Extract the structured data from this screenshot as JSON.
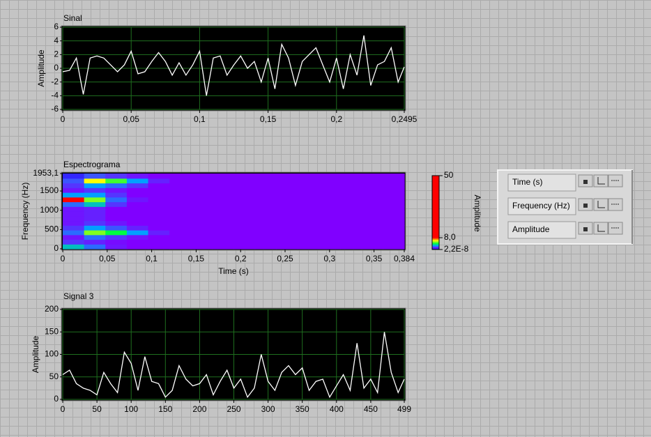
{
  "chart_data": [
    {
      "type": "line",
      "title": "Sinal",
      "y_label": "Amplitude",
      "color": "#ffffff",
      "background": "#000000",
      "grid": true,
      "grid_color": "#1f6f1f",
      "x": [
        0,
        0.005,
        0.01,
        0.015,
        0.02,
        0.025,
        0.03,
        0.035,
        0.04,
        0.045,
        0.05,
        0.055,
        0.06,
        0.065,
        0.07,
        0.075,
        0.08,
        0.085,
        0.09,
        0.095,
        0.1,
        0.105,
        0.11,
        0.115,
        0.12,
        0.125,
        0.13,
        0.135,
        0.14,
        0.145,
        0.15,
        0.155,
        0.16,
        0.165,
        0.17,
        0.175,
        0.18,
        0.185,
        0.19,
        0.195,
        0.2,
        0.205,
        0.21,
        0.215,
        0.22,
        0.225,
        0.23,
        0.235,
        0.24,
        0.245,
        0.2495
      ],
      "values": [
        -0.5,
        -0.3,
        1.5,
        -3.8,
        1.5,
        1.8,
        1.5,
        0.5,
        -0.5,
        0.5,
        2.5,
        -0.8,
        -0.5,
        1,
        2.3,
        1,
        -1,
        0.8,
        -1,
        0.5,
        2.5,
        -4,
        1.5,
        1.8,
        -1,
        0.5,
        1.8,
        0,
        1,
        -2,
        1.5,
        -3,
        3.5,
        1.5,
        -2.5,
        1,
        2,
        3,
        0.5,
        -2,
        1.5,
        -3,
        2,
        -1,
        4.8,
        -2.5,
        0.5,
        1,
        3,
        -2,
        0.2
      ],
      "xlim": [
        0,
        0.2495
      ],
      "xticks": [
        0,
        {
          "value": 0.05,
          "label": "0,05"
        },
        {
          "value": 0.1,
          "label": "0,1"
        },
        {
          "value": 0.15,
          "label": "0,15"
        },
        {
          "value": 0.2,
          "label": "0,2"
        },
        {
          "value": 0.2495,
          "label": "0,2495"
        }
      ],
      "ylim": [
        -6,
        6
      ],
      "yticks": [
        -6,
        -4,
        -2,
        0,
        2,
        4,
        6
      ]
    },
    {
      "type": "heatmap",
      "title": "Espectrograma",
      "x_label": "Time (s)",
      "y_label": "Frequency (Hz)",
      "xlim": [
        0,
        0.384
      ],
      "xticks": [
        0,
        {
          "value": 0.05,
          "label": "0,05"
        },
        {
          "value": 0.1,
          "label": "0,1"
        },
        {
          "value": 0.15,
          "label": "0,15"
        },
        {
          "value": 0.2,
          "label": "0,2"
        },
        {
          "value": 0.25,
          "label": "0,25"
        },
        {
          "value": 0.3,
          "label": "0,3"
        },
        {
          "value": 0.35,
          "label": "0,35"
        },
        {
          "value": 0.384,
          "label": "0,384"
        }
      ],
      "ylim": [
        0,
        1953.1
      ],
      "yticks": [
        0,
        500,
        1000,
        1500,
        {
          "value": 1953.1,
          "label": "1953,1"
        }
      ],
      "grid": false,
      "z": [
        [
          3,
          2,
          1.2,
          1,
          1,
          1,
          1,
          1,
          1,
          1,
          1,
          1,
          1,
          1,
          1,
          1
        ],
        [
          1.5,
          1.3,
          1.1,
          1,
          1,
          1,
          1,
          1,
          1,
          1,
          1,
          1,
          1,
          1,
          1,
          1
        ],
        [
          1.2,
          2,
          1.5,
          1.2,
          1,
          1,
          1,
          1,
          1,
          1,
          1,
          1,
          1,
          1,
          1,
          1
        ],
        [
          2,
          5,
          4,
          2.5,
          1.3,
          1,
          1,
          1,
          1,
          1,
          1,
          1,
          1,
          1,
          1,
          1
        ],
        [
          1.5,
          2.5,
          1.8,
          1.3,
          1,
          1,
          1,
          1,
          1,
          1,
          1,
          1,
          1,
          1,
          1,
          1
        ],
        [
          1.2,
          1.5,
          1.2,
          1,
          1,
          1,
          1,
          1,
          1,
          1,
          1,
          1,
          1,
          1,
          1,
          1
        ],
        [
          1.2,
          1.3,
          1,
          1,
          1,
          1,
          1,
          1,
          1,
          1,
          1,
          1,
          1,
          1,
          1,
          1
        ],
        [
          1.2,
          1.3,
          1,
          1,
          1,
          1,
          1,
          1,
          1,
          1,
          1,
          1,
          1,
          1,
          1,
          1
        ],
        [
          1.2,
          1.3,
          1,
          1,
          1,
          1,
          1,
          1,
          1,
          1,
          1,
          1,
          1,
          1,
          1,
          1
        ],
        [
          2,
          3,
          1.5,
          1,
          1,
          1,
          1,
          1,
          1,
          1,
          1,
          1,
          1,
          1,
          1,
          1
        ],
        [
          8,
          5,
          2,
          1.2,
          1,
          1,
          1,
          1,
          1,
          1,
          1,
          1,
          1,
          1,
          1,
          1
        ],
        [
          2.5,
          2.5,
          1.5,
          1,
          1,
          1,
          1,
          1,
          1,
          1,
          1,
          1,
          1,
          1,
          1,
          1
        ],
        [
          1.2,
          1.5,
          1.2,
          1,
          1,
          1,
          1,
          1,
          1,
          1,
          1,
          1,
          1,
          1,
          1,
          1
        ],
        [
          1.5,
          2.5,
          2,
          1.5,
          1,
          1,
          1,
          1,
          1,
          1,
          1,
          1,
          1,
          1,
          1,
          1
        ],
        [
          1.8,
          6,
          4.5,
          2.5,
          1.3,
          1,
          1,
          1,
          1,
          1,
          1,
          1,
          1,
          1,
          1,
          1
        ],
        [
          0.6,
          1.8,
          1.5,
          1.2,
          1,
          1,
          1,
          1,
          1,
          1,
          1,
          1,
          1,
          1,
          1,
          1
        ]
      ],
      "colorbar": {
        "label": "Amplitude",
        "lim": [
          2.2e-08,
          50
        ],
        "ticks": [
          {
            "value": 2.2e-08,
            "label": "2,2E-8"
          },
          {
            "value": 8,
            "label": "8,0"
          },
          50
        ],
        "colorscale": [
          [
            0,
            "#000000"
          ],
          [
            0.5,
            "#2030ff"
          ],
          [
            1,
            "#8000ff"
          ],
          [
            2.5,
            "#00a0ff"
          ],
          [
            4,
            "#00ff40"
          ],
          [
            6,
            "#ffff00"
          ],
          [
            8,
            "#ff0000"
          ],
          [
            50,
            "#ff0000"
          ]
        ]
      }
    },
    {
      "type": "line",
      "title": "Signal 3",
      "y_label": "Amplitude",
      "color": "#ffffff",
      "background": "#000000",
      "grid": true,
      "grid_color": "#1f6f1f",
      "x": [
        0,
        10,
        20,
        30,
        40,
        50,
        60,
        70,
        80,
        90,
        100,
        110,
        120,
        130,
        140,
        150,
        160,
        170,
        180,
        190,
        200,
        210,
        220,
        230,
        240,
        250,
        260,
        270,
        280,
        290,
        300,
        310,
        320,
        330,
        340,
        350,
        360,
        370,
        380,
        390,
        400,
        410,
        420,
        430,
        440,
        450,
        460,
        470,
        480,
        490,
        499
      ],
      "values": [
        55,
        65,
        35,
        25,
        20,
        10,
        60,
        35,
        15,
        105,
        80,
        20,
        95,
        40,
        35,
        5,
        20,
        75,
        45,
        30,
        35,
        55,
        10,
        40,
        65,
        25,
        45,
        5,
        25,
        100,
        40,
        20,
        60,
        75,
        55,
        70,
        20,
        40,
        45,
        5,
        30,
        55,
        20,
        125,
        25,
        45,
        15,
        150,
        60,
        15,
        45
      ],
      "xlim": [
        0,
        499
      ],
      "xticks": [
        0,
        50,
        100,
        150,
        200,
        250,
        300,
        350,
        400,
        450,
        499
      ],
      "ylim": [
        0,
        200
      ],
      "yticks": [
        0,
        50,
        100,
        150,
        200
      ]
    }
  ],
  "scale_legend": {
    "rows": [
      "Time (s)",
      "Frequency (Hz)",
      "Amplitude"
    ]
  }
}
